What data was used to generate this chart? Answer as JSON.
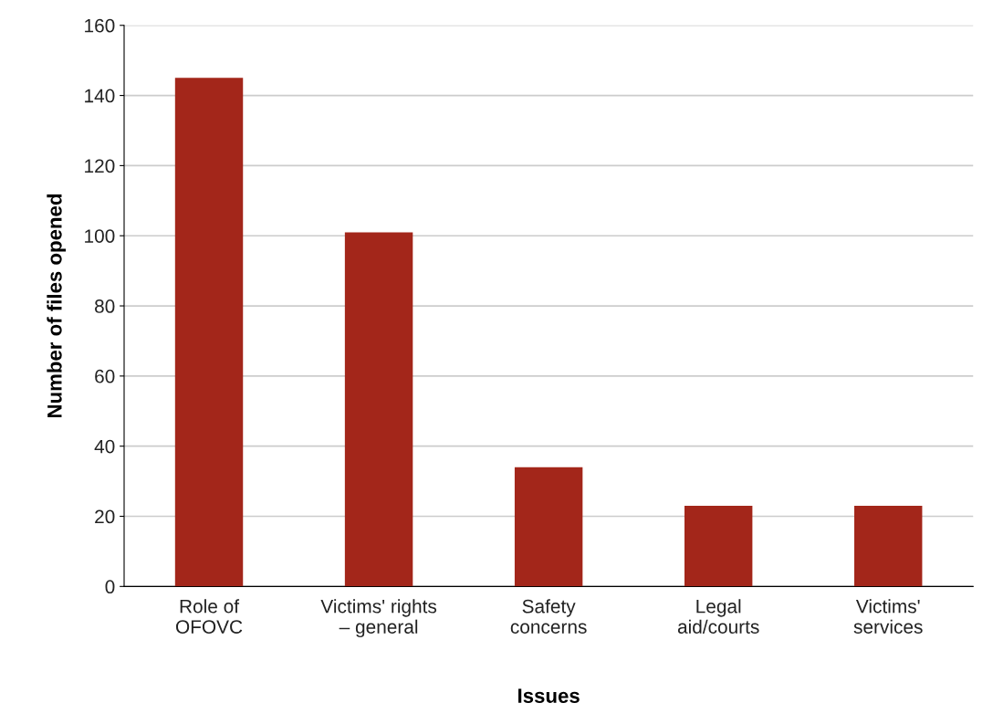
{
  "chart_data": {
    "type": "bar",
    "xlabel": "Issues",
    "ylabel": "Number of files opened",
    "categories": [
      "Role of\nOFOVC",
      "Victims' rights\n– general",
      "Safety\nconcerns",
      "Legal\naid/courts",
      "Victims'\nservices"
    ],
    "values": [
      145,
      101,
      34,
      23,
      23
    ],
    "color": "#a3261a",
    "ylim": [
      0,
      160
    ],
    "yticks": [
      0,
      20,
      40,
      60,
      80,
      100,
      120,
      140,
      160
    ],
    "grid": "y"
  }
}
